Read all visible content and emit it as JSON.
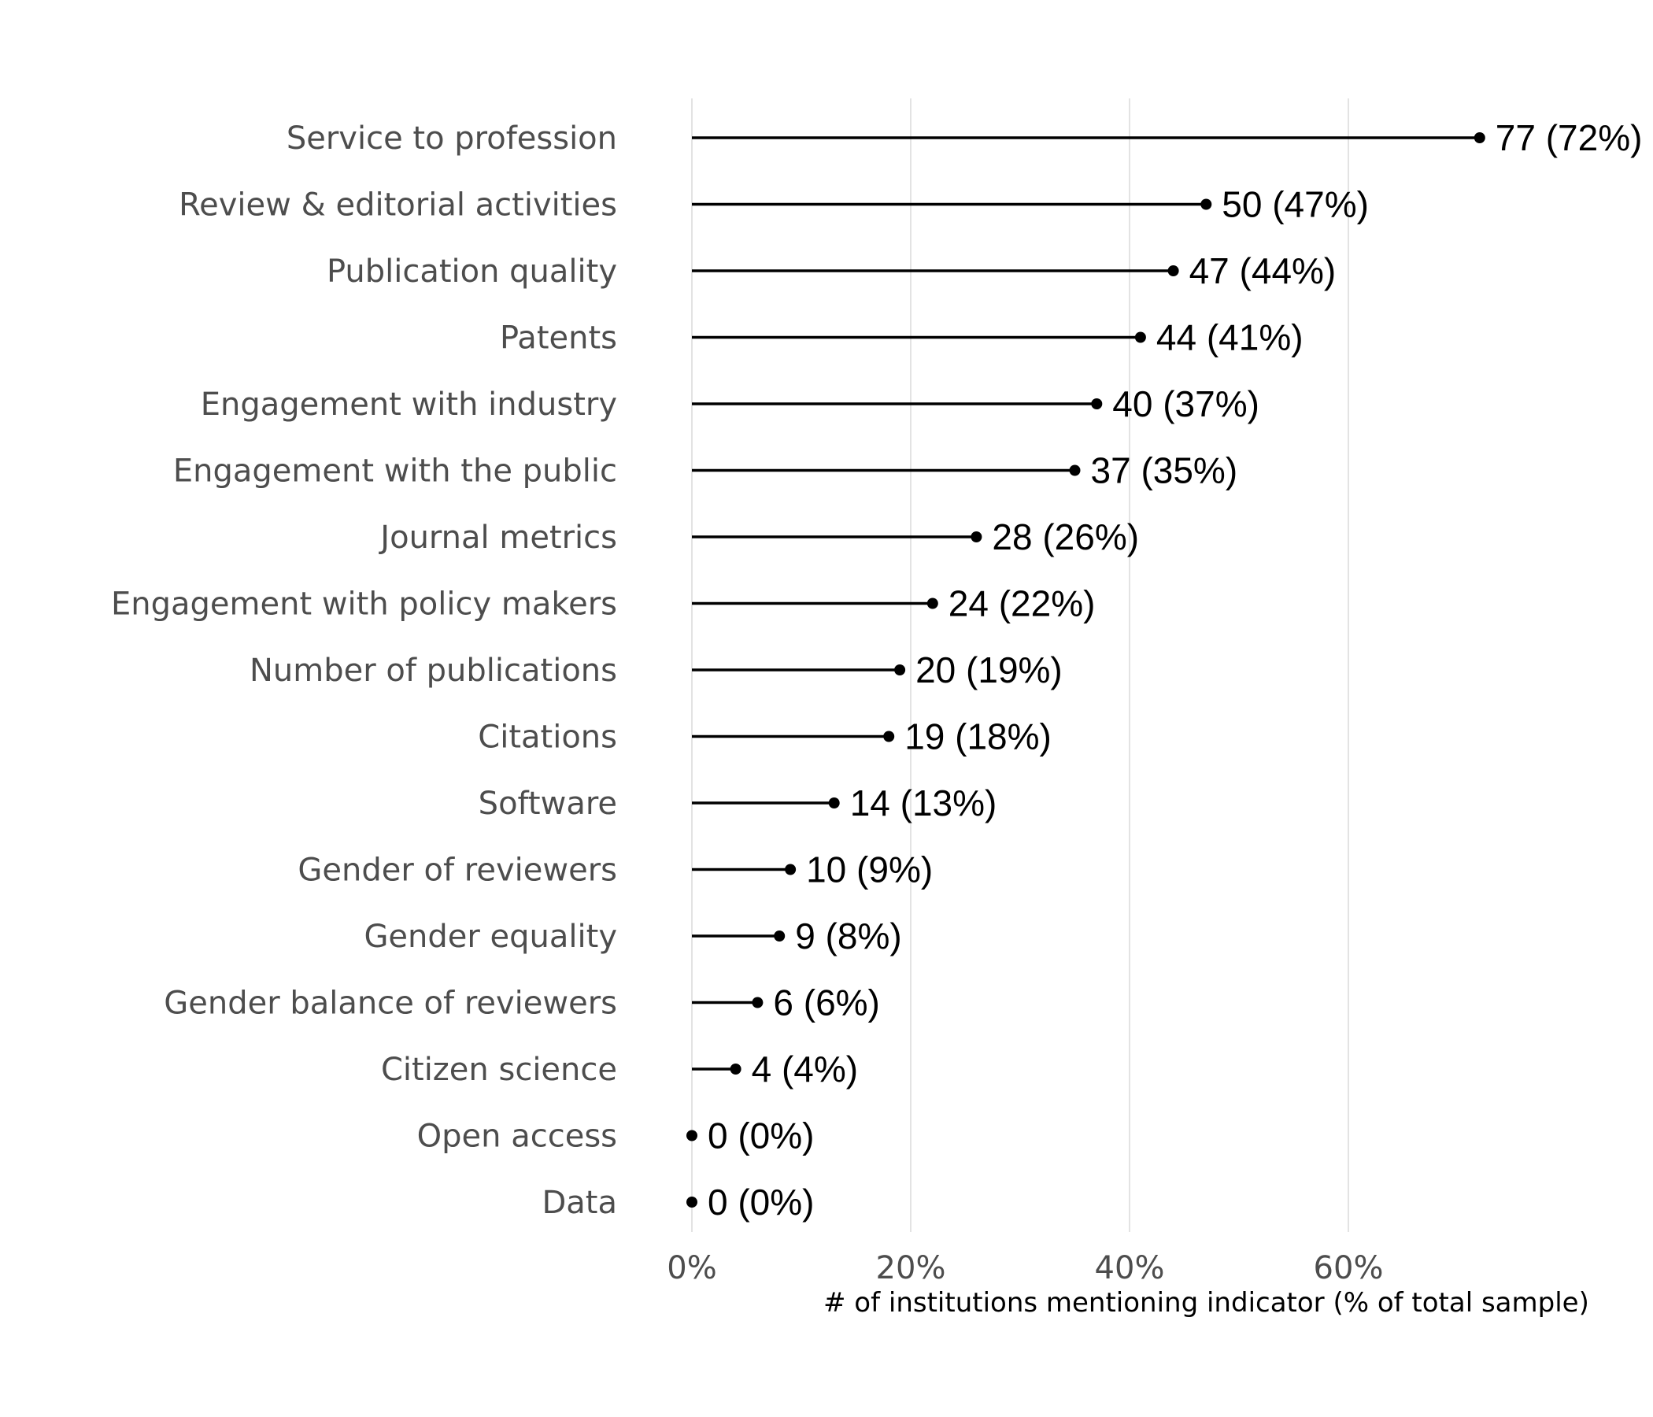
{
  "chart_data": {
    "type": "lollipop",
    "orientation": "horizontal",
    "title": "",
    "xlabel": "# of institutions mentioning indicator (% of total sample)",
    "ylabel": "",
    "xlim": [
      0,
      72
    ],
    "x_ticks": [
      0,
      20,
      40,
      60
    ],
    "x_tick_labels": [
      "0%",
      "20%",
      "40%",
      "60%"
    ],
    "grid": "vertical major gridlines",
    "categories": [
      "Service to profession",
      "Review & editorial activities",
      "Publication quality",
      "Patents",
      "Engagement with industry",
      "Engagement with the public",
      "Journal metrics",
      "Engagement with policy makers",
      "Number of publications",
      "Citations",
      "Software",
      "Gender of reviewers",
      "Gender equality",
      "Gender balance of reviewers",
      "Citizen science",
      "Open access",
      "Data"
    ],
    "counts": [
      77,
      50,
      47,
      44,
      40,
      37,
      28,
      24,
      20,
      19,
      14,
      10,
      9,
      6,
      4,
      0,
      0
    ],
    "percents": [
      72,
      47,
      44,
      41,
      37,
      35,
      26,
      22,
      19,
      18,
      13,
      9,
      8,
      6,
      4,
      0,
      0
    ],
    "value_labels": [
      "77 (72%)",
      "50 (47%)",
      "47 (44%)",
      "44 (41%)",
      "40 (37%)",
      "37 (35%)",
      "28 (26%)",
      "24 (22%)",
      "20 (19%)",
      "19 (18%)",
      "14 (13%)",
      "10 (9%)",
      "9 (8%)",
      "6 (6%)",
      "4 (4%)",
      "0 (0%)",
      "0 (0%)"
    ],
    "colors": {
      "marks": "#000000",
      "grid": "#e3e3e3",
      "labels": "#4d4d4d"
    }
  }
}
